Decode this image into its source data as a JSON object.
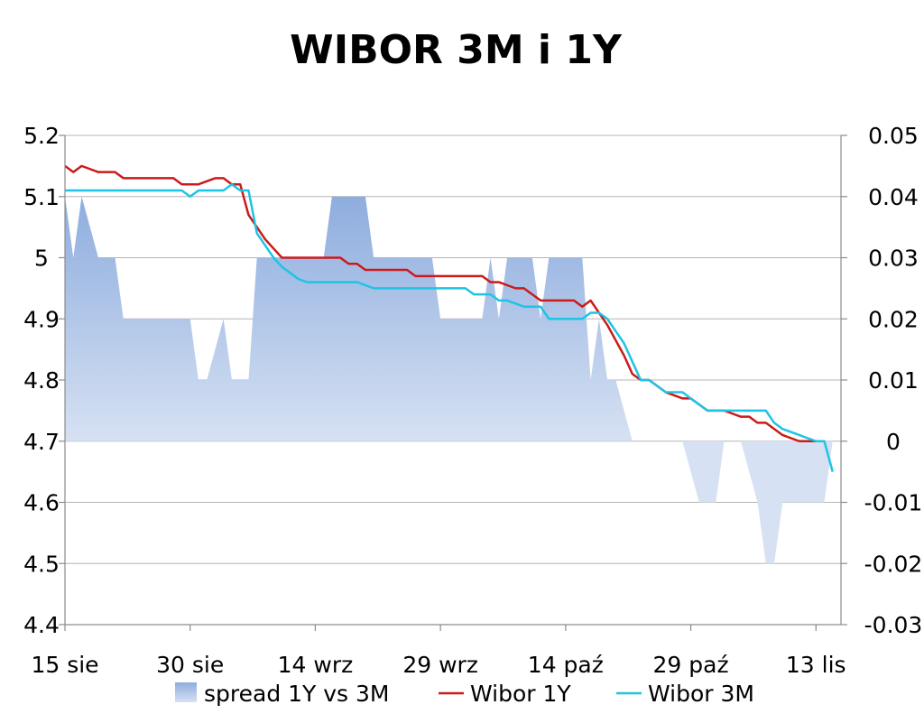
{
  "chart_data": {
    "type": "line",
    "title": "WIBOR 3M i 1Y",
    "x_tick_labels": [
      "15 sie",
      "30 sie",
      "14 wrz",
      "29 wrz",
      "14 paź",
      "29 paź",
      "13 lis"
    ],
    "x_tick_day": [
      0,
      15,
      30,
      45,
      60,
      75,
      90
    ],
    "x_range_days": [
      0,
      93
    ],
    "left_axis": {
      "ylim": [
        4.4,
        5.2
      ],
      "ticks": [
        "4.4",
        "4.5",
        "4.6",
        "4.7",
        "4.8",
        "4.9",
        "5",
        "5.1",
        "5.2"
      ]
    },
    "right_axis": {
      "ylim": [
        -0.03,
        0.05
      ],
      "ticks": [
        "-0.03",
        "-0.02",
        "-0.01",
        "0",
        "0.01",
        "0.02",
        "0.03",
        "0.04",
        "0.05"
      ]
    },
    "legend_position": "bottom",
    "series": [
      {
        "name": "spread 1Y vs 3M",
        "kind": "area",
        "axis": "right",
        "color_top": "#8eadde",
        "color_bottom": "#d6e1f3",
        "x": [
          0,
          1,
          2,
          4,
          5,
          6,
          7,
          8,
          9,
          10,
          11,
          12,
          13,
          14,
          15,
          16,
          17,
          18,
          19,
          20,
          21,
          22,
          23,
          24,
          25,
          26,
          27,
          28,
          29,
          30,
          31,
          32,
          33,
          34,
          35,
          36,
          37,
          38,
          39,
          40,
          41,
          42,
          43,
          44,
          45,
          46,
          47,
          48,
          49,
          50,
          51,
          52,
          53,
          54,
          55,
          56,
          57,
          58,
          59,
          60,
          61,
          62,
          63,
          64,
          65,
          66,
          67,
          68,
          69,
          70,
          71,
          72,
          73,
          74,
          75,
          76,
          77,
          78,
          79,
          80,
          81,
          82,
          83,
          84,
          85,
          86,
          87,
          88,
          89,
          90,
          91,
          92
        ],
        "values": [
          0.04,
          0.03,
          0.04,
          0.03,
          0.03,
          0.03,
          0.02,
          0.02,
          0.02,
          0.02,
          0.02,
          0.02,
          0.02,
          0.02,
          0.02,
          0.01,
          0.01,
          0.015,
          0.02,
          0.01,
          0.01,
          0.01,
          0.03,
          0.03,
          0.03,
          0.03,
          0.03,
          0.03,
          0.03,
          0.03,
          0.03,
          0.04,
          0.04,
          0.04,
          0.04,
          0.04,
          0.03,
          0.03,
          0.03,
          0.03,
          0.03,
          0.03,
          0.03,
          0.03,
          0.02,
          0.02,
          0.02,
          0.02,
          0.02,
          0.02,
          0.03,
          0.02,
          0.03,
          0.03,
          0.03,
          0.03,
          0.02,
          0.03,
          0.03,
          0.03,
          0.03,
          0.03,
          0.01,
          0.02,
          0.01,
          0.01,
          0.005,
          0.0,
          0.0,
          0.0,
          0.0,
          0.0,
          0.0,
          0.0,
          -0.005,
          -0.01,
          -0.01,
          -0.01,
          0.0,
          0.0,
          0.0,
          -0.005,
          -0.01,
          -0.02,
          -0.02,
          -0.01,
          -0.01,
          -0.01,
          -0.01,
          -0.01,
          -0.01,
          0.0
        ]
      },
      {
        "name": "Wibor 1Y",
        "kind": "line",
        "axis": "left",
        "color": "#cc1a1a",
        "x": [
          0,
          1,
          2,
          3,
          4,
          5,
          6,
          7,
          8,
          9,
          10,
          11,
          12,
          13,
          14,
          15,
          16,
          17,
          18,
          19,
          20,
          21,
          22,
          23,
          24,
          25,
          26,
          27,
          28,
          29,
          30,
          31,
          32,
          33,
          34,
          35,
          36,
          37,
          38,
          39,
          40,
          41,
          42,
          43,
          44,
          45,
          46,
          47,
          48,
          49,
          50,
          51,
          52,
          53,
          54,
          55,
          56,
          57,
          58,
          59,
          60,
          61,
          62,
          63,
          64,
          65,
          66,
          67,
          68,
          69,
          70,
          71,
          72,
          73,
          74,
          75,
          76,
          77,
          78,
          79,
          80,
          81,
          82,
          83,
          84,
          85,
          86,
          87,
          88,
          89,
          90
        ],
        "values": [
          5.15,
          5.14,
          5.15,
          5.145,
          5.14,
          5.14,
          5.14,
          5.13,
          5.13,
          5.13,
          5.13,
          5.13,
          5.13,
          5.13,
          5.12,
          5.12,
          5.12,
          5.125,
          5.13,
          5.13,
          5.12,
          5.12,
          5.07,
          5.05,
          5.03,
          5.015,
          5.0,
          5.0,
          5.0,
          5.0,
          5.0,
          5.0,
          5.0,
          5.0,
          4.99,
          4.99,
          4.98,
          4.98,
          4.98,
          4.98,
          4.98,
          4.98,
          4.97,
          4.97,
          4.97,
          4.97,
          4.97,
          4.97,
          4.97,
          4.97,
          4.97,
          4.96,
          4.96,
          4.955,
          4.95,
          4.95,
          4.94,
          4.93,
          4.93,
          4.93,
          4.93,
          4.93,
          4.92,
          4.93,
          4.91,
          4.89,
          4.865,
          4.84,
          4.81,
          4.8,
          4.8,
          4.79,
          4.78,
          4.775,
          4.77,
          4.77,
          4.76,
          4.75,
          4.75,
          4.75,
          4.745,
          4.74,
          4.74,
          4.73,
          4.73,
          4.72,
          4.71,
          4.705,
          4.7,
          4.7,
          4.7
        ]
      },
      {
        "name": "Wibor 3M",
        "kind": "line",
        "axis": "left",
        "color": "#1ec4e4",
        "x": [
          0,
          1,
          2,
          3,
          4,
          5,
          6,
          7,
          8,
          9,
          10,
          11,
          12,
          13,
          14,
          15,
          16,
          17,
          18,
          19,
          20,
          21,
          22,
          23,
          24,
          25,
          26,
          27,
          28,
          29,
          30,
          31,
          32,
          33,
          34,
          35,
          36,
          37,
          38,
          39,
          40,
          41,
          42,
          43,
          44,
          45,
          46,
          47,
          48,
          49,
          50,
          51,
          52,
          53,
          54,
          55,
          56,
          57,
          58,
          59,
          60,
          61,
          62,
          63,
          64,
          65,
          66,
          67,
          68,
          69,
          70,
          71,
          72,
          73,
          74,
          75,
          76,
          77,
          78,
          79,
          80,
          81,
          82,
          83,
          84,
          85,
          86,
          87,
          88,
          89,
          90,
          91,
          92
        ],
        "values": [
          5.11,
          5.11,
          5.11,
          5.11,
          5.11,
          5.11,
          5.11,
          5.11,
          5.11,
          5.11,
          5.11,
          5.11,
          5.11,
          5.11,
          5.11,
          5.1,
          5.11,
          5.11,
          5.11,
          5.11,
          5.12,
          5.11,
          5.11,
          5.04,
          5.02,
          5.0,
          4.985,
          4.975,
          4.965,
          4.96,
          4.96,
          4.96,
          4.96,
          4.96,
          4.96,
          4.96,
          4.955,
          4.95,
          4.95,
          4.95,
          4.95,
          4.95,
          4.95,
          4.95,
          4.95,
          4.95,
          4.95,
          4.95,
          4.95,
          4.94,
          4.94,
          4.94,
          4.93,
          4.93,
          4.925,
          4.92,
          4.92,
          4.92,
          4.9,
          4.9,
          4.9,
          4.9,
          4.9,
          4.91,
          4.91,
          4.9,
          4.88,
          4.86,
          4.83,
          4.8,
          4.8,
          4.79,
          4.78,
          4.78,
          4.78,
          4.77,
          4.76,
          4.75,
          4.75,
          4.75,
          4.75,
          4.75,
          4.75,
          4.75,
          4.75,
          4.73,
          4.72,
          4.715,
          4.71,
          4.705,
          4.7,
          4.7,
          4.65
        ]
      }
    ]
  }
}
